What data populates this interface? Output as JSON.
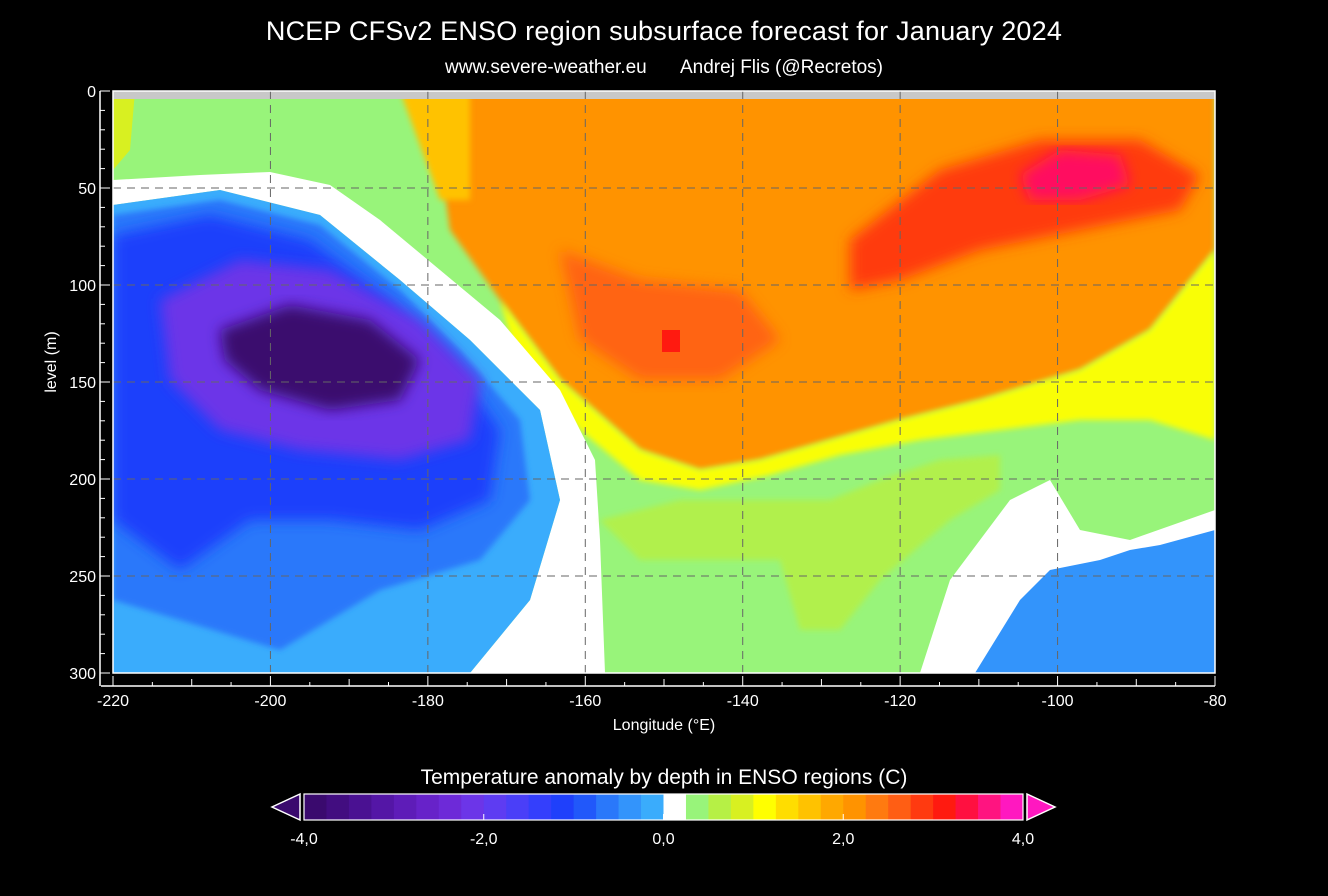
{
  "header": {
    "title": "NCEP CFSv2 ENSO region subsurface forecast for January 2024",
    "site": "www.severe-weather.eu",
    "author": "Andrej Flis (@Recretos)"
  },
  "chart_data": {
    "type": "heatmap",
    "title": "NCEP CFSv2 ENSO region subsurface forecast for January 2024",
    "xlabel": "Longitude (°E)",
    "ylabel": "level (m)",
    "xlim": [
      -220,
      -80
    ],
    "ylim": [
      0,
      300
    ],
    "y_inverted": true,
    "x_ticks": [
      -220,
      -200,
      -180,
      -160,
      -140,
      -120,
      -100,
      -80
    ],
    "y_ticks": [
      0,
      50,
      100,
      150,
      200,
      250,
      300
    ],
    "grid": true,
    "colorbar": {
      "label": "Temperature anomaly by depth in ENSO regions (C)",
      "range": [
        -4.0,
        4.0
      ],
      "ticks": [
        "-4,0",
        "-2,0",
        "0,0",
        "2,0",
        "4,0"
      ],
      "colors": [
        "#3a0a6e",
        "#420d80",
        "#4a1192",
        "#5416a6",
        "#5e1cb8",
        "#6722c9",
        "#6d2ad8",
        "#6c35e8",
        "#5e3cf2",
        "#4a3ff8",
        "#343ffc",
        "#1f40fb",
        "#2158fa",
        "#2a78fa",
        "#3394fb",
        "#3aacfc",
        "#ffffff",
        "#98f47a",
        "#b6f045",
        "#d8f021",
        "#ffff00",
        "#ffdd00",
        "#ffc200",
        "#ffa800",
        "#ff9300",
        "#ff7a10",
        "#ff5e14",
        "#ff3a10",
        "#ff1a10",
        "#ff1040",
        "#ff1480",
        "#ff18c0"
      ]
    },
    "features": [
      {
        "name": "cold anomaly core",
        "center": [
          -190,
          140
        ],
        "value": -4.0
      },
      {
        "name": "warm anomaly subsurface",
        "center": [
          -150,
          125
        ],
        "value": 2.9
      },
      {
        "name": "warm anomaly near surface",
        "center": [
          -100,
          40
        ],
        "value": 3.6
      }
    ]
  }
}
